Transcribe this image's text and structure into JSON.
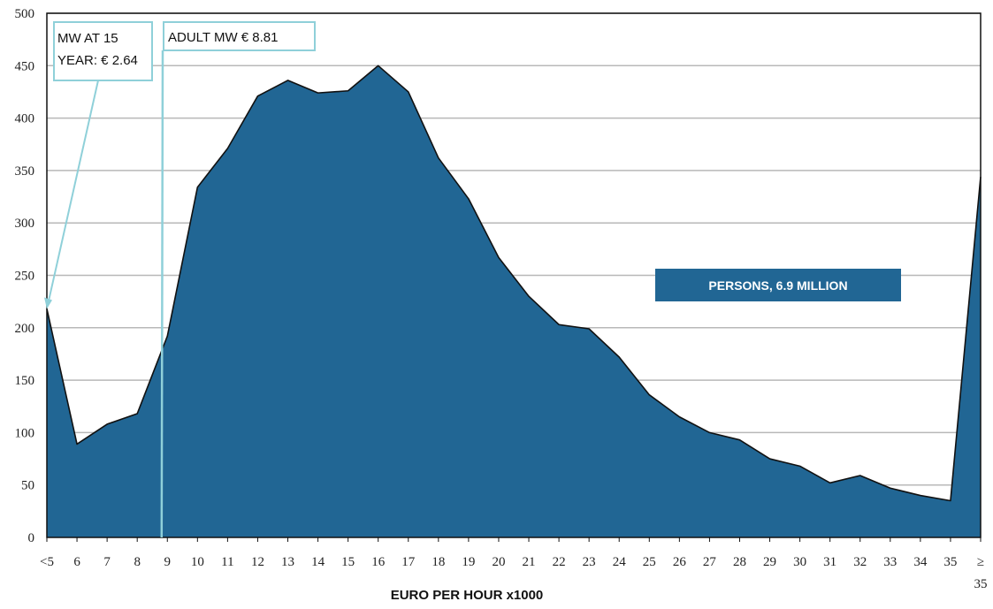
{
  "chart_data": {
    "type": "area",
    "categories": [
      "<5",
      "6",
      "7",
      "8",
      "9",
      "10",
      "11",
      "12",
      "13",
      "14",
      "15",
      "16",
      "17",
      "18",
      "19",
      "20",
      "21",
      "22",
      "23",
      "24",
      "25",
      "26",
      "27",
      "28",
      "29",
      "30",
      "31",
      "32",
      "33",
      "34",
      "35",
      "≥ 35"
    ],
    "series": [
      {
        "name": "PERSONS, 6.9 MILLION",
        "values": [
          218,
          89,
          108,
          118,
          192,
          334,
          371,
          421,
          436,
          424,
          426,
          450,
          425,
          362,
          323,
          267,
          230,
          203,
          199,
          172,
          136,
          115,
          100,
          93,
          75,
          68,
          52,
          59,
          47,
          40,
          35,
          344
        ]
      }
    ],
    "xlabel": "EURO PER HOUR x1000",
    "ylabel": "",
    "ylim": [
      0,
      500
    ],
    "yticks": [
      0,
      50,
      100,
      150,
      200,
      250,
      300,
      350,
      400,
      450,
      500
    ],
    "grid": true,
    "colors": {
      "area": "#216694",
      "callout": "#8fd0d9",
      "grid": "#b8b8b8"
    },
    "annotations": [
      {
        "id": "mw15",
        "lines": [
          "MW AT 15",
          "YEAR: € 2.64"
        ],
        "value": 2.64,
        "target_category_index": 0,
        "target_value": 218
      },
      {
        "id": "adult",
        "lines": [
          "ADULT MW  € 8.81"
        ],
        "value": 8.81,
        "target_value": 0
      }
    ]
  }
}
